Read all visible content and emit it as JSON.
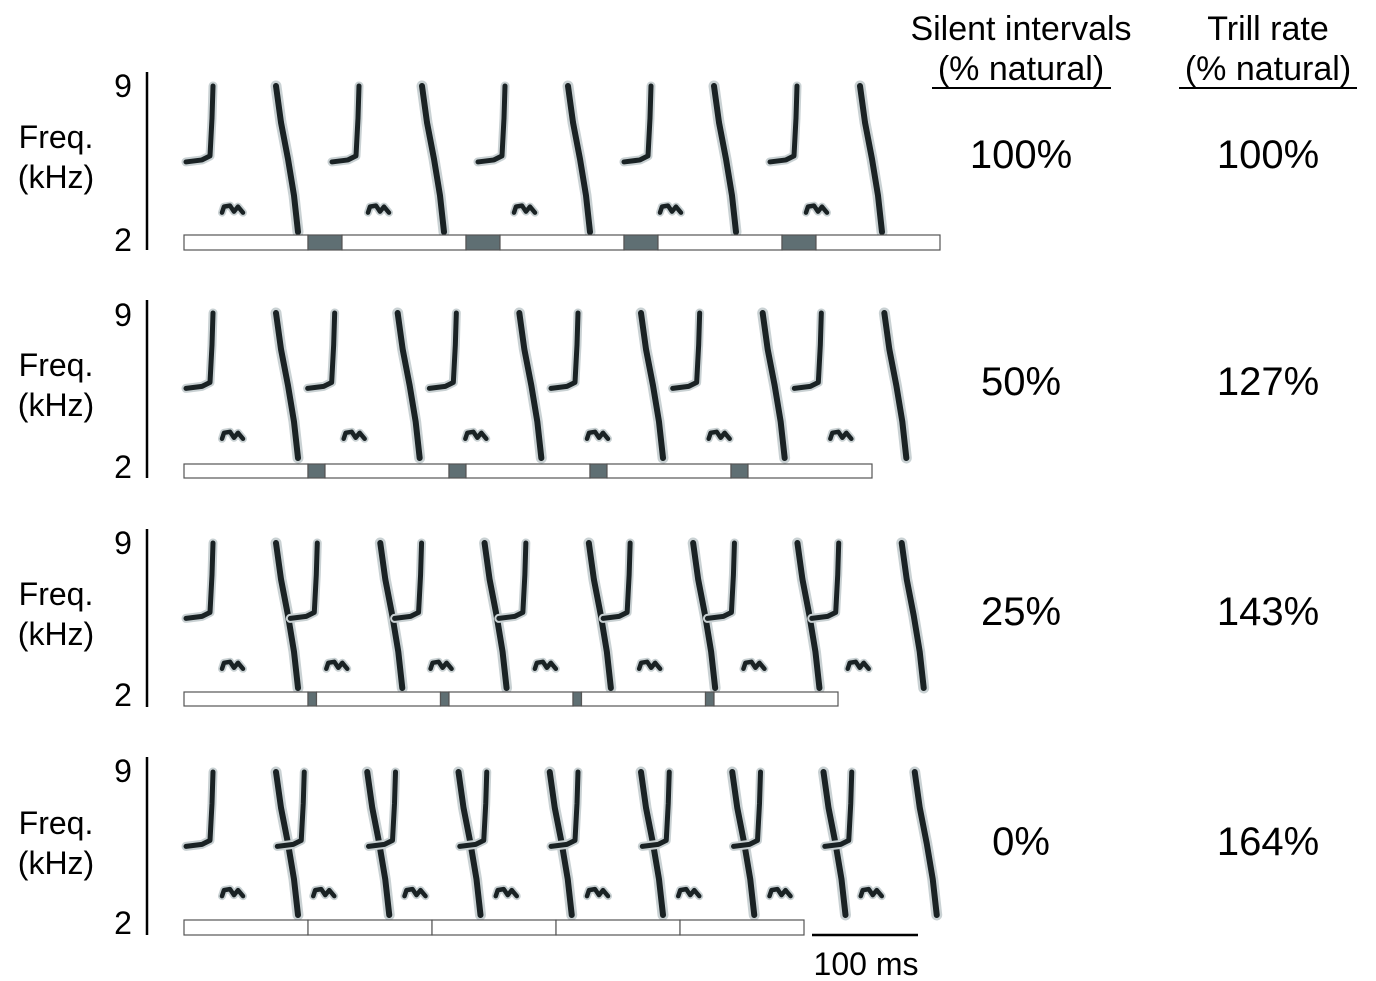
{
  "headers": {
    "silent_title": "Silent intervals",
    "silent_sub": "(% natural)",
    "trill_title": "Trill rate",
    "trill_sub": "(% natural)"
  },
  "y_axis": {
    "label_line1": "Freq.",
    "label_line2": "(kHz)",
    "max_label": "9",
    "min_label": "2"
  },
  "scale_bar": {
    "label": "100 ms"
  },
  "rows": [
    {
      "silent": "100%",
      "trill": "100%",
      "syllables": 5,
      "gap_fraction": 1.0
    },
    {
      "silent": "50%",
      "trill": "127%",
      "syllables": 6,
      "gap_fraction": 0.5
    },
    {
      "silent": "25%",
      "trill": "143%",
      "syllables": 7,
      "gap_fraction": 0.25
    },
    {
      "silent": "0%",
      "trill": "164%",
      "syllables": 8,
      "gap_fraction": 0.0
    }
  ],
  "colors": {
    "gap_fill": "#5f6f73",
    "ink": "#1a2224",
    "haze": "#c9d1d3",
    "note_box_fill": "#ffffff",
    "note_box_stroke": "#555555"
  }
}
